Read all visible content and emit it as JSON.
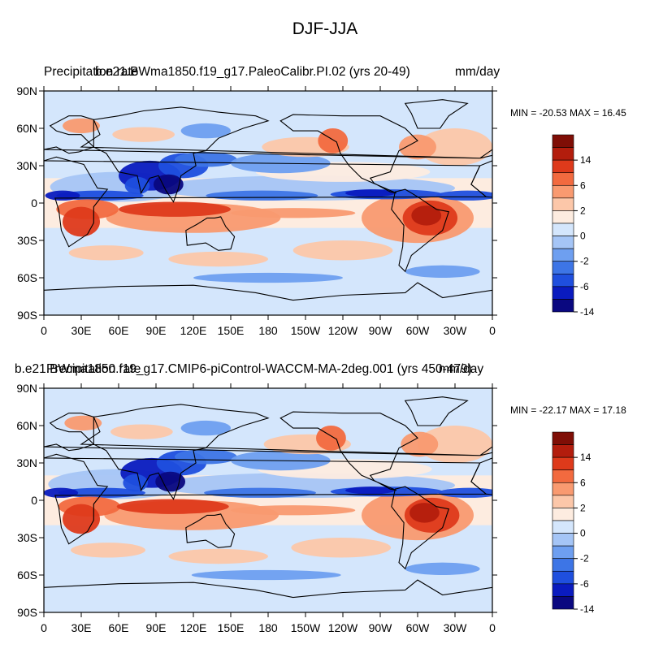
{
  "title": "DJF-JJA",
  "colors": {
    "levels": [
      "#0a0880",
      "#0a1bbf",
      "#1f4fde",
      "#3d75e6",
      "#6e9ff0",
      "#a5c5f6",
      "#d4e6fc",
      "#fdece0",
      "#fcc7a9",
      "#f99a70",
      "#f26a3f",
      "#de3a1b",
      "#b31d0d",
      "#7f0e06"
    ]
  },
  "colorbar": {
    "labels": [
      "14",
      "6",
      "2",
      "0",
      "-2",
      "-6",
      "-14"
    ]
  },
  "axes": {
    "lat_labels": [
      "90N",
      "60N",
      "30N",
      "0",
      "30S",
      "60S",
      "90S"
    ],
    "lon_labels": [
      "0",
      "30E",
      "60E",
      "90E",
      "120E",
      "150E",
      "180",
      "150W",
      "120W",
      "90W",
      "60W",
      "30W",
      "0"
    ]
  },
  "panels": [
    {
      "left_title": "Precipitation rate",
      "center_title": "b.e21.BWma1850.f19_g17.PaleoCalibr.PI.02 (yrs 20-49)",
      "right_title": "mm/day",
      "min_max": "MIN = -20.53 MAX =  16.45"
    },
    {
      "left_title": "b.e21.BWma1850.f19_g17.CMIP6-piControl-WACCM-MA-2deg.001 (yrs 450-479)",
      "center_title": "Precipitation rate",
      "right_title": "mm/day",
      "min_max": "MIN = -22.17 MAX =  17.18"
    }
  ]
}
